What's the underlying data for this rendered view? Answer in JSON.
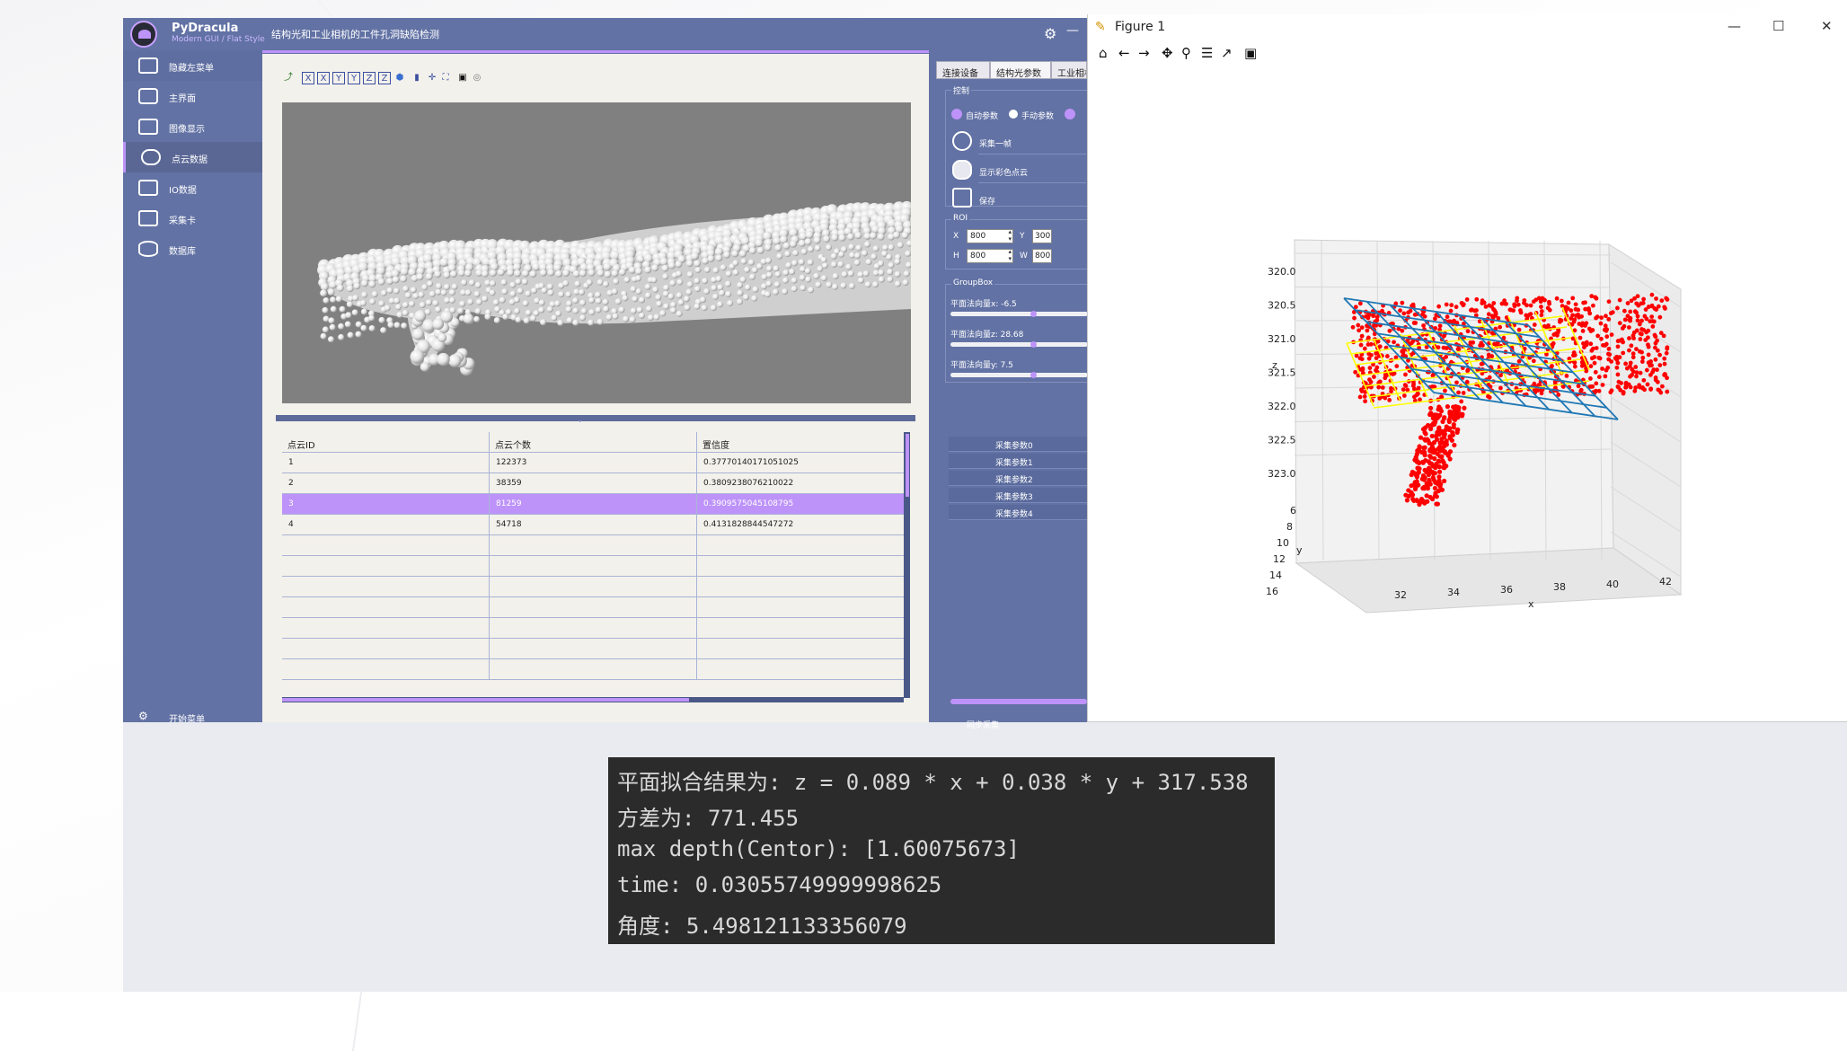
{
  "app": {
    "name": "PyDracula",
    "subtitle": "Modern GUI / Flat Style",
    "window_title": "结构光和工业相机的工件孔洞缺陷检测"
  },
  "sidebar": {
    "items": [
      {
        "label": "隐藏左菜单",
        "icon": "menu-icon"
      },
      {
        "label": "主界面",
        "icon": "camera-icon"
      },
      {
        "label": "图像显示",
        "icon": "image-icon"
      },
      {
        "label": "点云数据",
        "icon": "cloud-icon"
      },
      {
        "label": "IO数据",
        "icon": "grid-icon"
      },
      {
        "label": "采集卡",
        "icon": "chip-icon"
      },
      {
        "label": "数据库",
        "icon": "database-icon"
      }
    ],
    "bottom_label": "开始菜单"
  },
  "table": {
    "headers": [
      "点云ID",
      "点云个数",
      "置信度"
    ],
    "rows": [
      [
        "1",
        "122373",
        "0.37770140171051025"
      ],
      [
        "2",
        "38359",
        "0.3809238076210022"
      ],
      [
        "3",
        "81259",
        "0.3909575045108795"
      ],
      [
        "4",
        "54718",
        "0.4131828844547272"
      ]
    ],
    "selected_row": 3
  },
  "right_panel": {
    "tabs": [
      "连接设备",
      "结构光参数",
      "工业相机"
    ],
    "control": {
      "title": "控制",
      "auto_label": "自动参数",
      "manual_label": "手动参数",
      "capture_label": "采集一帧",
      "color_label": "显示彩色点云",
      "save_label": "保存"
    },
    "roi": {
      "title": "ROI",
      "x_label": "X",
      "x_value": "800",
      "y_label": "Y",
      "y_value": "300",
      "h_label": "H",
      "h_value": "800",
      "w_label": "W",
      "w_value": "800"
    },
    "groupbox": {
      "title": "GroupBox",
      "sliders": [
        {
          "label": "平面法向量x: -6.5"
        },
        {
          "label": "平面法向量z: 28.68"
        },
        {
          "label": "平面法向量y: 7.5"
        }
      ]
    },
    "params": [
      "采集参数0",
      "采集参数1",
      "采集参数2",
      "采集参数3",
      "采集参数4"
    ],
    "sync_label": "同步采集"
  },
  "figure": {
    "title": "Figure 1",
    "z_ticks": [
      "320.0",
      "320.5",
      "321.0",
      "321.5",
      "322.0",
      "322.5",
      "323.0"
    ],
    "y_ticks": [
      "6",
      "8",
      "10",
      "12",
      "14",
      "16"
    ],
    "x_ticks": [
      "32",
      "34",
      "36",
      "38",
      "40",
      "42"
    ],
    "xlabel": "x",
    "ylabel": "y",
    "zlabel": "z",
    "colors": {
      "points": "#ff0000",
      "fit_plane": "#1f77b4",
      "ref_plane": "#ffff00"
    }
  },
  "console": {
    "lines": [
      "平面拟合结果为: z = 0.089 * x + 0.038 * y + 317.538",
      "方差为: 771.455",
      "max depth(Centor): [1.60075673]",
      "time: 0.03055749999998625",
      "角度: 5.498121133356079"
    ]
  }
}
